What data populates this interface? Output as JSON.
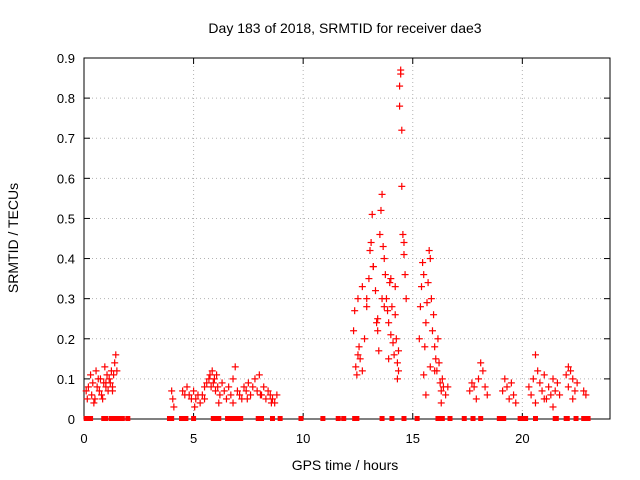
{
  "chart_data": {
    "type": "scatter",
    "title": "Day 183 of 2018, SRMTID for receiver dae3",
    "xlabel": "GPS time / hours",
    "ylabel": "SRMTID / TECUs",
    "xlim": [
      0,
      24
    ],
    "ylim": [
      0,
      0.9
    ],
    "x_ticks": [
      0,
      5,
      10,
      15,
      20
    ],
    "x_tick_labels": [
      "0",
      "5",
      "10",
      "15",
      "20"
    ],
    "y_ticks": [
      0,
      0.1,
      0.2,
      0.3,
      0.4,
      0.5,
      0.6,
      0.7,
      0.8,
      0.9
    ],
    "y_tick_labels": [
      "0",
      "0.1",
      "0.2",
      "0.3",
      "0.4",
      "0.5",
      "0.6",
      "0.7",
      "0.8",
      "0.9"
    ],
    "grid": true,
    "marker": "+",
    "color": "#ff0000",
    "series": [
      {
        "name": "SRMTID",
        "x": [
          0.1,
          0.2,
          0.3,
          0.35,
          0.4,
          0.5,
          0.55,
          0.6,
          0.7,
          0.75,
          0.8,
          0.9,
          0.95,
          1.0,
          1.05,
          1.1,
          1.15,
          1.2,
          1.25,
          1.3,
          1.35,
          1.4,
          1.45,
          1.5,
          0.15,
          0.45,
          0.65,
          0.85,
          1.0,
          1.3,
          4.0,
          4.05,
          4.1,
          4.5,
          4.6,
          4.7,
          4.8,
          4.9,
          5.0,
          5.1,
          5.2,
          5.3,
          5.4,
          5.5,
          5.6,
          5.7,
          5.75,
          5.8,
          5.85,
          5.9,
          5.95,
          6.0,
          6.05,
          6.1,
          6.2,
          6.3,
          6.4,
          6.5,
          6.6,
          6.7,
          6.8,
          6.9,
          7.0,
          7.1,
          7.2,
          7.3,
          7.4,
          7.5,
          7.6,
          7.7,
          7.8,
          7.9,
          8.0,
          8.1,
          8.2,
          8.3,
          8.4,
          8.5,
          8.6,
          8.7,
          8.8,
          5.05,
          5.5,
          6.15,
          6.8,
          7.45,
          8.05,
          8.55,
          12.3,
          12.35,
          12.4,
          12.45,
          12.5,
          12.55,
          12.6,
          12.7,
          12.8,
          12.9,
          13.0,
          13.05,
          13.1,
          13.15,
          13.2,
          13.3,
          13.4,
          13.45,
          13.5,
          13.55,
          13.6,
          13.65,
          13.7,
          13.75,
          13.8,
          13.85,
          13.9,
          13.95,
          14.0,
          14.05,
          14.1,
          14.15,
          14.2,
          14.25,
          14.3,
          14.35,
          14.4,
          14.4,
          14.45,
          14.45,
          14.5,
          14.5,
          14.55,
          14.6,
          14.65,
          14.7,
          14.3,
          14.2,
          13.9,
          13.6,
          13.4,
          13.2,
          12.9,
          12.7,
          12.5,
          13.35,
          13.7,
          14.0,
          14.35,
          14.6,
          15.3,
          15.35,
          15.4,
          15.45,
          15.5,
          15.55,
          15.6,
          15.65,
          15.7,
          15.75,
          15.8,
          15.85,
          15.9,
          15.95,
          16.0,
          16.05,
          16.1,
          16.15,
          16.2,
          16.25,
          16.3,
          16.35,
          16.4,
          16.5,
          16.6,
          15.5,
          15.6,
          15.8,
          16.0,
          16.3,
          17.6,
          17.7,
          17.8,
          17.9,
          18.0,
          18.1,
          18.2,
          18.3,
          18.4,
          19.1,
          19.2,
          19.3,
          19.4,
          19.5,
          19.6,
          19.7,
          20.3,
          20.4,
          20.5,
          20.6,
          20.7,
          20.8,
          20.9,
          21.0,
          21.1,
          21.2,
          21.3,
          21.4,
          21.5,
          21.6,
          21.7,
          20.6,
          21.0,
          21.4,
          22.0,
          22.1,
          22.2,
          22.3,
          22.4,
          22.5,
          22.8,
          22.9,
          22.1,
          22.3
        ],
        "y": [
          0.07,
          0.08,
          0.11,
          0.06,
          0.09,
          0.05,
          0.12,
          0.08,
          0.07,
          0.1,
          0.06,
          0.09,
          0.13,
          0.08,
          0.11,
          0.07,
          0.1,
          0.09,
          0.12,
          0.08,
          0.11,
          0.14,
          0.16,
          0.12,
          0.05,
          0.04,
          0.1,
          0.05,
          0.09,
          0.07,
          0.07,
          0.05,
          0.03,
          0.07,
          0.06,
          0.08,
          0.06,
          0.05,
          0.07,
          0.05,
          0.06,
          0.04,
          0.06,
          0.08,
          0.09,
          0.1,
          0.11,
          0.08,
          0.12,
          0.09,
          0.1,
          0.07,
          0.11,
          0.08,
          0.06,
          0.09,
          0.07,
          0.05,
          0.08,
          0.06,
          0.1,
          0.13,
          0.07,
          0.06,
          0.05,
          0.08,
          0.07,
          0.09,
          0.06,
          0.08,
          0.1,
          0.07,
          0.11,
          0.06,
          0.08,
          0.05,
          0.07,
          0.06,
          0.05,
          0.04,
          0.06,
          0.03,
          0.05,
          0.04,
          0.04,
          0.05,
          0.06,
          0.04,
          0.22,
          0.27,
          0.13,
          0.11,
          0.16,
          0.18,
          0.15,
          0.12,
          0.2,
          0.3,
          0.35,
          0.42,
          0.44,
          0.51,
          0.38,
          0.32,
          0.25,
          0.17,
          0.46,
          0.52,
          0.56,
          0.43,
          0.4,
          0.36,
          0.3,
          0.27,
          0.24,
          0.34,
          0.21,
          0.28,
          0.19,
          0.16,
          0.33,
          0.2,
          0.14,
          0.12,
          0.78,
          0.83,
          0.87,
          0.86,
          0.72,
          0.58,
          0.46,
          0.41,
          0.36,
          0.3,
          0.1,
          0.26,
          0.15,
          0.3,
          0.22,
          0.38,
          0.28,
          0.33,
          0.3,
          0.24,
          0.28,
          0.35,
          0.17,
          0.44,
          0.2,
          0.28,
          0.33,
          0.39,
          0.36,
          0.18,
          0.24,
          0.29,
          0.34,
          0.42,
          0.4,
          0.3,
          0.22,
          0.26,
          0.18,
          0.15,
          0.12,
          0.2,
          0.14,
          0.09,
          0.07,
          0.1,
          0.08,
          0.06,
          0.08,
          0.11,
          0.06,
          0.13,
          0.12,
          0.04,
          0.07,
          0.09,
          0.08,
          0.05,
          0.1,
          0.14,
          0.12,
          0.08,
          0.06,
          0.07,
          0.1,
          0.08,
          0.05,
          0.09,
          0.06,
          0.04,
          0.08,
          0.06,
          0.1,
          0.16,
          0.12,
          0.09,
          0.07,
          0.11,
          0.05,
          0.08,
          0.06,
          0.1,
          0.07,
          0.09,
          0.06,
          0.04,
          0.05,
          0.03,
          0.11,
          0.08,
          0.12,
          0.1,
          0.07,
          0.09,
          0.07,
          0.06,
          0.13,
          0.05
        ]
      }
    ],
    "baseline_markers_x": [
      0.1,
      0.3,
      0.9,
      1.0,
      1.25,
      1.45,
      1.55,
      1.75,
      2.0,
      3.9,
      4.0,
      4.45,
      4.55,
      4.65,
      5.0,
      5.9,
      6.0,
      6.15,
      6.55,
      6.65,
      6.85,
      7.0,
      7.15,
      7.95,
      8.1,
      8.6,
      8.95,
      9.9,
      10.9,
      11.6,
      11.85,
      12.35,
      12.45,
      13.6,
      14.05,
      14.6,
      15.2,
      16.15,
      16.35,
      16.7,
      17.35,
      17.75,
      18.1,
      18.95,
      19.15,
      19.9,
      20.05,
      20.15,
      20.6,
      21.5,
      21.55,
      22.0,
      22.05,
      22.45,
      22.8,
      23.0
    ]
  }
}
